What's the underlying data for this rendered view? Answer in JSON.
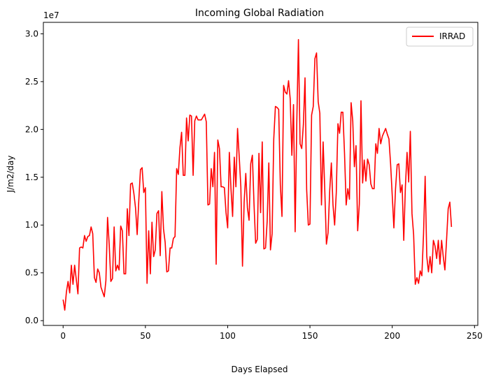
{
  "chart_data": {
    "type": "line",
    "title": "Incoming Global Radiation",
    "xlabel": "Days Elapsed",
    "ylabel": "J/m2/day",
    "y_offset_text": "1e7",
    "y_scale": 10000000,
    "xlim": [
      -12,
      252
    ],
    "ylim": [
      -0.05,
      3.12
    ],
    "x_ticks": [
      0,
      50,
      100,
      150,
      200,
      250
    ],
    "y_ticks": [
      0.0,
      0.5,
      1.0,
      1.5,
      2.0,
      2.5,
      3.0
    ],
    "x_tick_labels": [
      "0",
      "50",
      "100",
      "150",
      "200",
      "250"
    ],
    "y_tick_labels": [
      "0.0",
      "0.5",
      "1.0",
      "1.5",
      "2.0",
      "2.5",
      "3.0"
    ],
    "legend_position": "top-right",
    "grid": false,
    "series": [
      {
        "name": "IRRAD",
        "color": "#ff0000",
        "y": [
          0.22,
          0.11,
          0.3,
          0.41,
          0.29,
          0.58,
          0.38,
          0.58,
          0.43,
          0.28,
          0.76,
          0.77,
          0.76,
          0.89,
          0.83,
          0.88,
          0.89,
          0.98,
          0.91,
          0.45,
          0.4,
          0.54,
          0.5,
          0.35,
          0.3,
          0.25,
          0.42,
          1.08,
          0.8,
          0.41,
          0.44,
          0.98,
          0.52,
          0.58,
          0.53,
          0.99,
          0.94,
          0.49,
          0.49,
          1.17,
          0.89,
          1.43,
          1.44,
          1.33,
          1.18,
          0.9,
          1.26,
          1.58,
          1.6,
          1.34,
          1.39,
          0.39,
          0.94,
          0.49,
          1.03,
          0.67,
          0.74,
          1.12,
          1.15,
          0.68,
          1.35,
          0.96,
          0.82,
          0.51,
          0.52,
          0.76,
          0.76,
          0.86,
          0.88,
          1.59,
          1.53,
          1.81,
          1.97,
          1.52,
          1.52,
          2.12,
          1.88,
          2.15,
          2.14,
          1.52,
          2.09,
          2.14,
          2.1,
          2.1,
          2.1,
          2.13,
          2.16,
          2.08,
          1.21,
          1.22,
          1.59,
          1.4,
          1.76,
          0.59,
          1.89,
          1.8,
          1.4,
          1.4,
          1.39,
          1.13,
          0.97,
          1.76,
          1.38,
          1.09,
          1.71,
          1.4,
          2.01,
          1.72,
          1.4,
          0.57,
          1.24,
          1.54,
          1.18,
          1.05,
          1.64,
          1.73,
          1.22,
          0.81,
          0.85,
          1.75,
          1.13,
          1.87,
          0.75,
          0.76,
          1.04,
          1.65,
          0.74,
          0.91,
          1.9,
          2.24,
          2.23,
          2.21,
          1.42,
          1.09,
          2.46,
          2.39,
          2.37,
          2.51,
          2.32,
          1.73,
          2.26,
          0.93,
          2.07,
          2.94,
          1.85,
          1.8,
          2.05,
          2.54,
          1.37,
          1.0,
          1.01,
          2.15,
          2.24,
          2.74,
          2.8,
          2.29,
          2.17,
          1.21,
          1.87,
          1.37,
          0.8,
          0.92,
          1.36,
          1.65,
          1.21,
          1.0,
          1.34,
          2.06,
          1.96,
          2.18,
          2.18,
          1.75,
          1.21,
          1.38,
          1.27,
          2.28,
          2.09,
          1.61,
          1.83,
          0.94,
          1.22,
          2.3,
          1.44,
          1.68,
          1.46,
          1.69,
          1.63,
          1.43,
          1.38,
          1.38,
          1.85,
          1.75,
          2.01,
          1.85,
          1.93,
          1.97,
          2.01,
          1.95,
          1.9,
          1.64,
          1.31,
          0.97,
          1.38,
          1.63,
          1.64,
          1.34,
          1.42,
          0.84,
          1.4,
          1.76,
          1.45,
          1.98,
          1.12,
          0.9,
          0.38,
          0.45,
          0.39,
          0.52,
          0.47,
          0.9,
          1.51,
          0.67,
          0.51,
          0.67,
          0.5,
          0.84,
          0.78,
          0.65,
          0.84,
          0.59,
          0.84,
          0.67,
          0.53,
          0.84,
          1.17,
          1.24,
          0.98
        ]
      }
    ]
  }
}
